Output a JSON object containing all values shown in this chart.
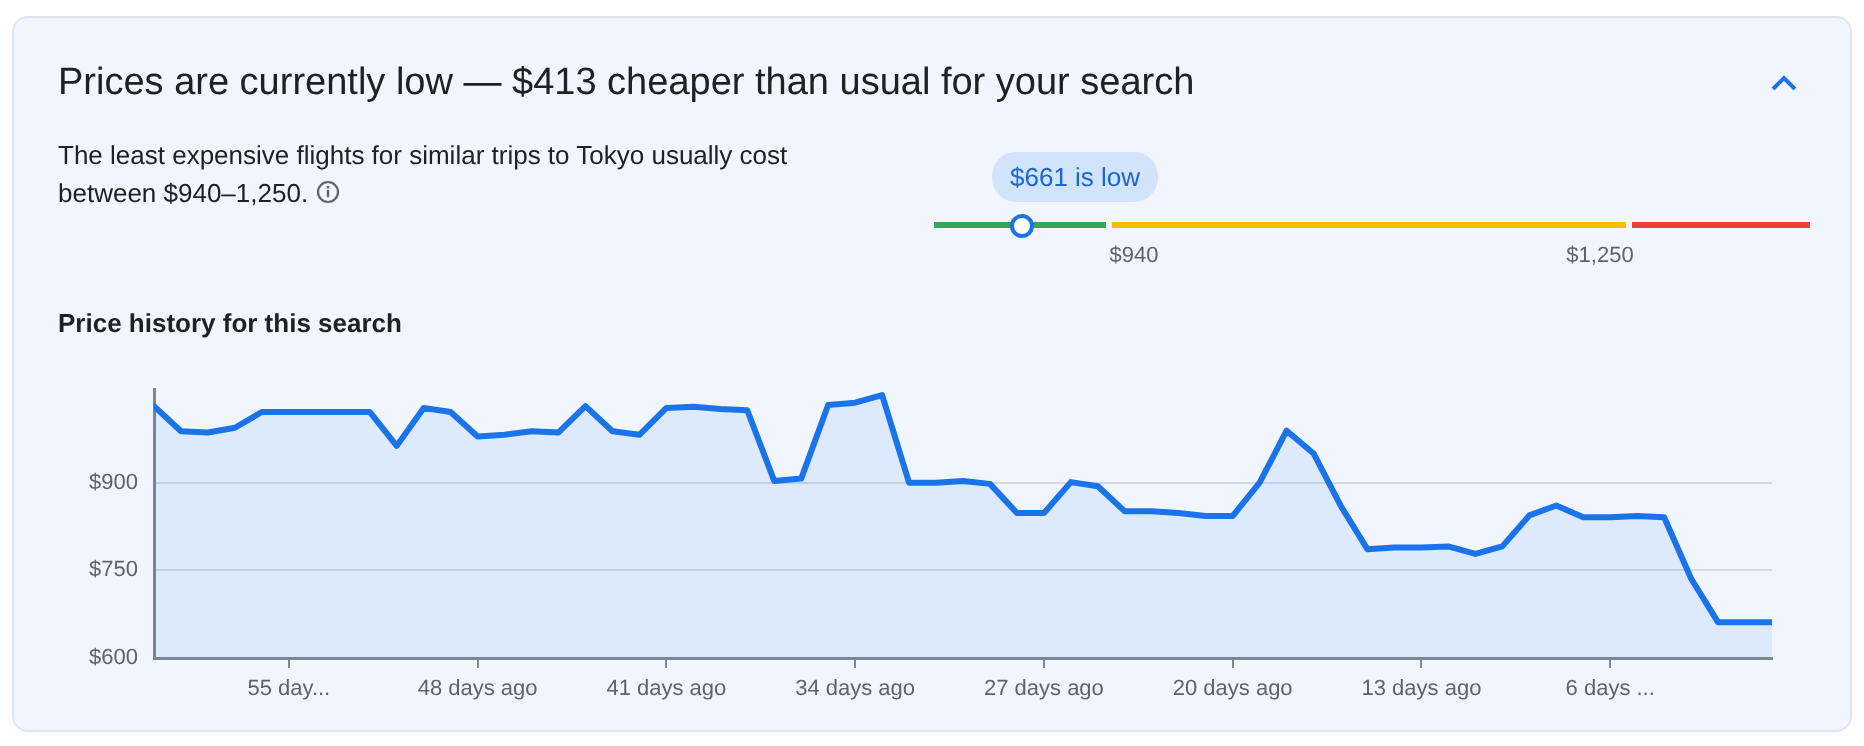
{
  "chart_data": {
    "type": "area",
    "title": "Prices are currently low — $413 cheaper than usual for your search",
    "subtitle": "The least expensive flights for similar trips to Tokyo usually cost between $940–1,250.",
    "annotations": [
      "Price history for this search",
      "$661 is low",
      "$940",
      "$1,250"
    ],
    "x": [
      60,
      59,
      58,
      57,
      56,
      55,
      54,
      53,
      52,
      51,
      50,
      49,
      48,
      47,
      46,
      45,
      44,
      43,
      42,
      41,
      40,
      39,
      38,
      37,
      36,
      35,
      34,
      33,
      32,
      31,
      30,
      29,
      28,
      27,
      26,
      25,
      24,
      23,
      22,
      21,
      20,
      19,
      18,
      17,
      16,
      15,
      14,
      13,
      12,
      11,
      10,
      9,
      8,
      7,
      6,
      5,
      4,
      3,
      2,
      1,
      0
    ],
    "series": [
      {
        "color": "#1a73e8",
        "values": [
          1031,
          988,
          986,
          994,
          1021,
          1021,
          1021,
          1021,
          1021,
          963,
          1028,
          1021,
          979,
          982,
          988,
          986,
          1031,
          988,
          982,
          1028,
          1030,
          1026,
          1024,
          903,
          907,
          1033,
          1037,
          1050,
          900,
          900,
          903,
          898,
          848,
          848,
          901,
          894,
          851,
          851,
          848,
          843,
          843,
          900,
          989,
          950,
          861,
          786,
          789,
          789,
          791,
          778,
          791,
          844,
          861,
          841,
          841,
          843,
          841,
          736,
          661,
          661,
          661
        ]
      }
    ],
    "xlim": [
      60,
      0
    ],
    "xticks": [
      {
        "value": 55,
        "label": "55 day..."
      },
      {
        "value": 48,
        "label": "48 days ago"
      },
      {
        "value": 41,
        "label": "41 days ago"
      },
      {
        "value": 34,
        "label": "34 days ago"
      },
      {
        "value": 27,
        "label": "27 days ago"
      },
      {
        "value": 20,
        "label": "20 days ago"
      },
      {
        "value": 13,
        "label": "13 days ago"
      },
      {
        "value": 6,
        "label": "6 days ..."
      }
    ],
    "ylim": [
      600,
      1060
    ],
    "yticks": [
      {
        "value": 600,
        "label": "$600"
      },
      {
        "value": 750,
        "label": "$750"
      },
      {
        "value": 900,
        "label": "$900"
      }
    ],
    "grid": "y",
    "legend": false,
    "marker": "none",
    "line_style": "solid"
  }
}
